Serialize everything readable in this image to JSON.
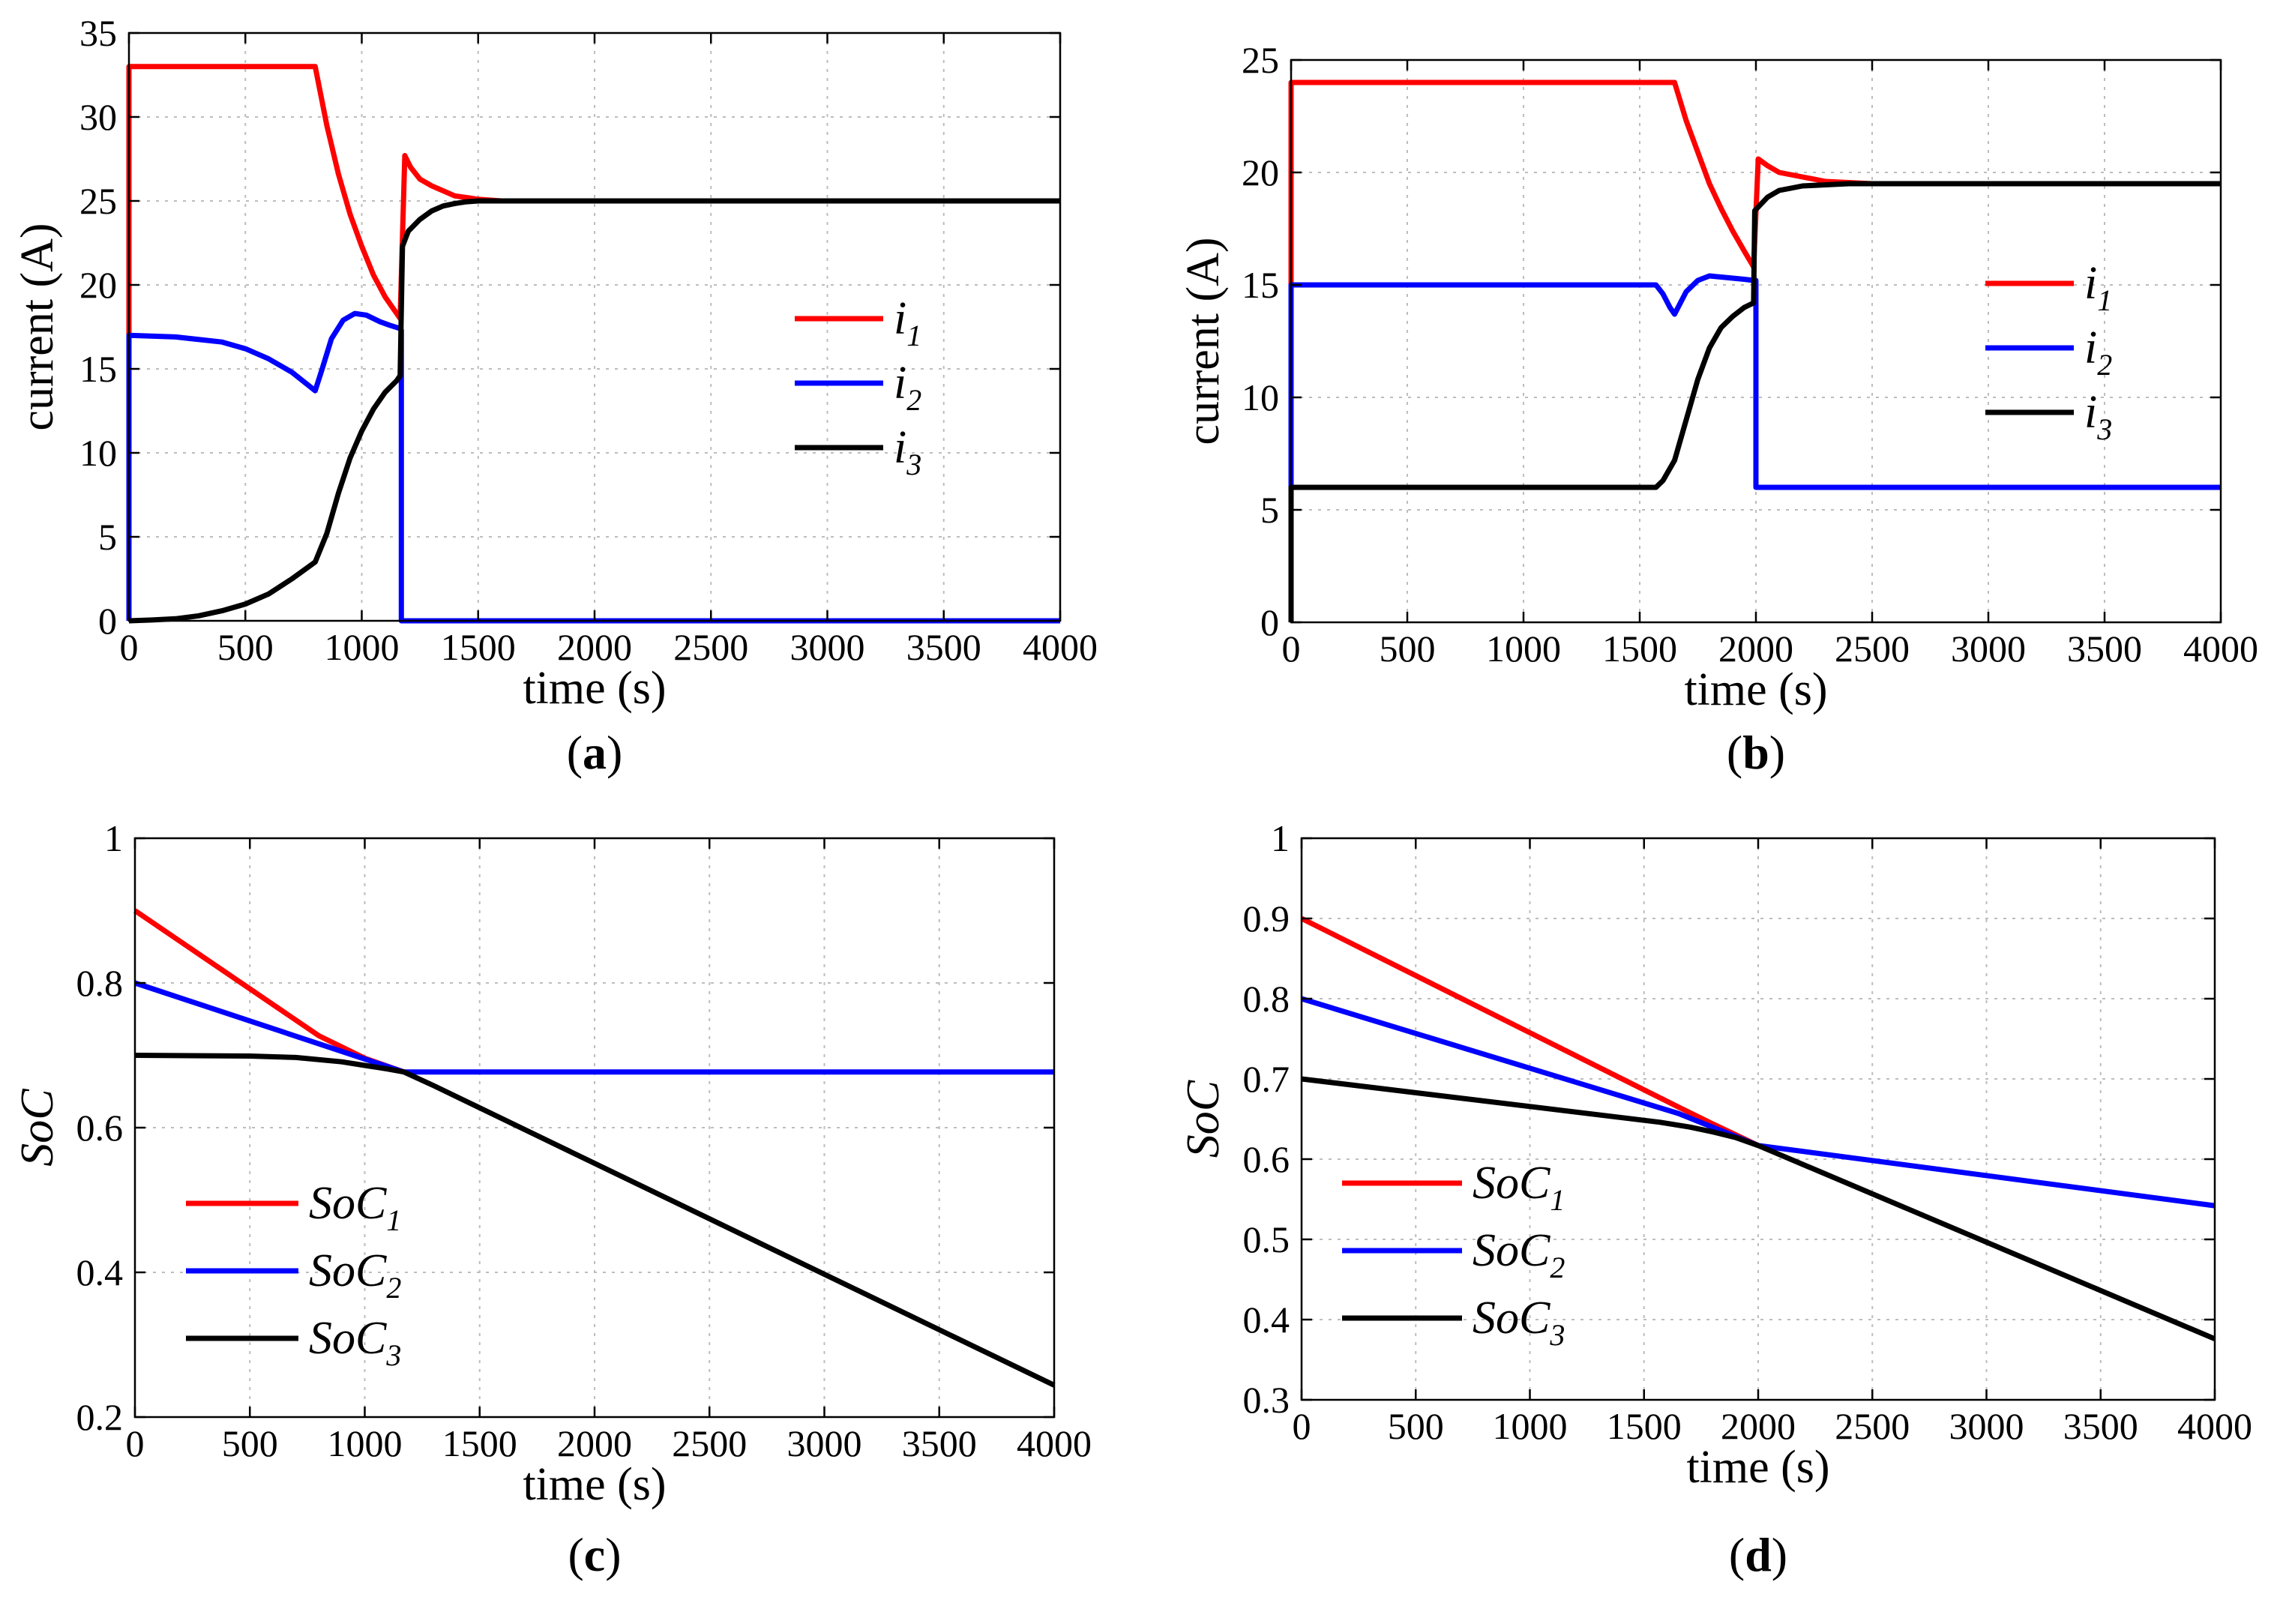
{
  "chart_data": [
    {
      "id": "a",
      "type": "line",
      "panel_label": "a",
      "xlabel": "time (s)",
      "ylabel": "current (A)",
      "xlim": [
        0,
        4000
      ],
      "ylim": [
        0,
        35
      ],
      "xticks": [
        0,
        500,
        1000,
        1500,
        2000,
        2500,
        3000,
        3500,
        4000
      ],
      "yticks": [
        0,
        5,
        10,
        15,
        20,
        25,
        30,
        35
      ],
      "grid": true,
      "legend": "center-right",
      "series": [
        {
          "name": "i",
          "sub": "1",
          "color": "#ff0000",
          "x": [
            0,
            0,
            800,
            850,
            900,
            950,
            1000,
            1050,
            1100,
            1165,
            1165,
            1185,
            1210,
            1250,
            1300,
            1350,
            1400,
            1450,
            1500,
            1600,
            4000
          ],
          "y": [
            0,
            33,
            33,
            29.5,
            26.6,
            24.2,
            22.3,
            20.6,
            19.3,
            18,
            18,
            27.7,
            27.0,
            26.3,
            25.9,
            25.6,
            25.3,
            25.2,
            25.1,
            25,
            25
          ]
        },
        {
          "name": "i",
          "sub": "2",
          "color": "#0000ff",
          "x": [
            0,
            0,
            200,
            400,
            500,
            600,
            700,
            800,
            830,
            870,
            920,
            970,
            1020,
            1080,
            1120,
            1165,
            1170,
            1170,
            4000
          ],
          "y": [
            0,
            17,
            16.9,
            16.6,
            16.2,
            15.6,
            14.8,
            13.7,
            15.0,
            16.8,
            17.9,
            18.3,
            18.2,
            17.8,
            17.6,
            17.4,
            17.3,
            0,
            0
          ]
        },
        {
          "name": "i",
          "sub": "3",
          "color": "#000000",
          "x": [
            0,
            100,
            200,
            300,
            400,
            500,
            600,
            700,
            800,
            850,
            900,
            950,
            1000,
            1050,
            1100,
            1150,
            1165,
            1175,
            1200,
            1250,
            1300,
            1350,
            1400,
            1450,
            1500,
            1600,
            4000
          ],
          "y": [
            0,
            0.05,
            0.12,
            0.3,
            0.6,
            1.0,
            1.6,
            2.5,
            3.5,
            5.2,
            7.6,
            9.7,
            11.3,
            12.6,
            13.6,
            14.3,
            14.6,
            22.3,
            23.2,
            23.9,
            24.4,
            24.7,
            24.85,
            24.95,
            25,
            25,
            25
          ]
        }
      ]
    },
    {
      "id": "b",
      "type": "line",
      "panel_label": "b",
      "xlabel": "time (s)",
      "ylabel": "current (A)",
      "xlim": [
        0,
        4000
      ],
      "ylim": [
        0,
        25
      ],
      "xticks": [
        0,
        500,
        1000,
        1500,
        2000,
        2500,
        3000,
        3500,
        4000
      ],
      "yticks": [
        0,
        5,
        10,
        15,
        20,
        25
      ],
      "grid": true,
      "legend": "center-right",
      "series": [
        {
          "name": "i",
          "sub": "1",
          "color": "#ff0000",
          "x": [
            0,
            0,
            1650,
            1700,
            1750,
            1800,
            1850,
            1900,
            1950,
            1990,
            1990,
            2010,
            2050,
            2100,
            2200,
            2300,
            2400,
            2500,
            4000
          ],
          "y": [
            0,
            24,
            24,
            22.3,
            20.9,
            19.5,
            18.4,
            17.4,
            16.5,
            15.8,
            15.8,
            20.6,
            20.3,
            20.0,
            19.8,
            19.6,
            19.55,
            19.5,
            19.5
          ]
        },
        {
          "name": "i",
          "sub": "2",
          "color": "#0000ff",
          "x": [
            0,
            0,
            1570,
            1600,
            1630,
            1650,
            1700,
            1750,
            1800,
            1850,
            1900,
            1950,
            1990,
            2000,
            2000,
            4000
          ],
          "y": [
            0,
            15,
            15,
            14.6,
            14.0,
            13.7,
            14.7,
            15.2,
            15.4,
            15.35,
            15.3,
            15.25,
            15.2,
            15.2,
            6,
            6
          ]
        },
        {
          "name": "i",
          "sub": "3",
          "color": "#000000",
          "x": [
            0,
            0,
            1570,
            1600,
            1650,
            1700,
            1750,
            1800,
            1850,
            1900,
            1950,
            1990,
            1995,
            2050,
            2100,
            2200,
            2300,
            2400,
            2500,
            4000
          ],
          "y": [
            0,
            6,
            6,
            6.3,
            7.2,
            9.0,
            10.8,
            12.2,
            13.1,
            13.6,
            14.0,
            14.2,
            18.3,
            18.9,
            19.2,
            19.4,
            19.45,
            19.5,
            19.5,
            19.5
          ]
        }
      ]
    },
    {
      "id": "c",
      "type": "line",
      "panel_label": "c",
      "xlabel": "time (s)",
      "ylabel": "SoC",
      "xlim": [
        0,
        4000
      ],
      "ylim": [
        0.2,
        1
      ],
      "xticks": [
        0,
        500,
        1000,
        1500,
        2000,
        2500,
        3000,
        3500,
        4000
      ],
      "yticks": [
        0.2,
        0.4,
        0.6,
        0.8,
        1
      ],
      "ytick_labels": [
        "0.2",
        "0.4",
        "0.6",
        "0.8",
        "1"
      ],
      "grid": true,
      "legend": "bottom-left",
      "series": [
        {
          "name": "SoC",
          "sub": "1",
          "color": "#ff0000",
          "x": [
            0,
            800,
            1000,
            1170
          ],
          "y": [
            0.9,
            0.727,
            0.696,
            0.677
          ]
        },
        {
          "name": "SoC",
          "sub": "2",
          "color": "#0000ff",
          "x": [
            0,
            1170,
            4000
          ],
          "y": [
            0.8,
            0.677,
            0.677
          ]
        },
        {
          "name": "SoC",
          "sub": "3",
          "color": "#000000",
          "x": [
            0,
            500,
            700,
            900,
            1000,
            1100,
            1170,
            1300,
            4000
          ],
          "y": [
            0.7,
            0.699,
            0.697,
            0.691,
            0.686,
            0.681,
            0.677,
            0.658,
            0.244
          ]
        }
      ]
    },
    {
      "id": "d",
      "type": "line",
      "panel_label": "d",
      "xlabel": "time (s)",
      "ylabel": "SoC",
      "xlim": [
        0,
        4000
      ],
      "ylim": [
        0.3,
        1
      ],
      "xticks": [
        0,
        500,
        1000,
        1500,
        2000,
        2500,
        3000,
        3500,
        4000
      ],
      "yticks": [
        0.3,
        0.4,
        0.5,
        0.6,
        0.7,
        0.8,
        0.9,
        1
      ],
      "ytick_labels": [
        "0.3",
        "0.4",
        "0.5",
        "0.6",
        "0.7",
        "0.8",
        "0.9",
        "1"
      ],
      "grid": true,
      "legend": "bottom-left",
      "series": [
        {
          "name": "SoC",
          "sub": "1",
          "color": "#ff0000",
          "x": [
            0,
            1650,
            1800,
            2000
          ],
          "y": [
            0.9,
            0.665,
            0.644,
            0.617
          ]
        },
        {
          "name": "SoC",
          "sub": "2",
          "color": "#0000ff",
          "x": [
            0,
            1650,
            2000,
            4000
          ],
          "y": [
            0.8,
            0.657,
            0.617,
            0.542
          ]
        },
        {
          "name": "SoC",
          "sub": "3",
          "color": "#000000",
          "x": [
            0,
            1570,
            1700,
            1800,
            1900,
            2000,
            4000
          ],
          "y": [
            0.7,
            0.646,
            0.64,
            0.634,
            0.627,
            0.617,
            0.376
          ]
        }
      ]
    }
  ]
}
